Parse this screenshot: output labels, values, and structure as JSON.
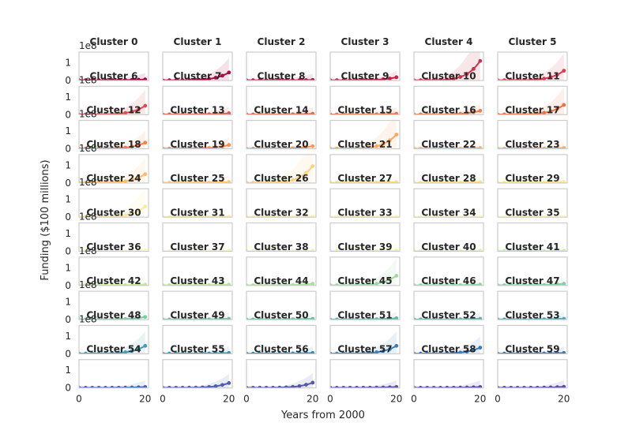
{
  "chart_data": {
    "type": "line",
    "layout": "small-multiples grid, 6 columns x 10 rows",
    "xlabel": "Years from 2000",
    "ylabel": "Funding ($100 millions)",
    "y_offset_label": "1e8",
    "xlim": [
      0,
      21
    ],
    "ylim": [
      0,
      1.6
    ],
    "xticks": [
      0,
      20
    ],
    "yticks": [
      0,
      1
    ],
    "grid": false,
    "colormap": "Spectral",
    "x": [
      0,
      1,
      2,
      3,
      4,
      5,
      6,
      7,
      8,
      9,
      10,
      11,
      12,
      13,
      14,
      15,
      16,
      17,
      18,
      19,
      20
    ],
    "clusters": [
      {
        "name": "Cluster 0",
        "color": "#9e0142",
        "end_value": 0.06
      },
      {
        "name": "Cluster 1",
        "color": "#a90d45",
        "end_value": 0.45
      },
      {
        "name": "Cluster 2",
        "color": "#b41a47",
        "end_value": 0.03
      },
      {
        "name": "Cluster 3",
        "color": "#bf2649",
        "end_value": 0.18
      },
      {
        "name": "Cluster 4",
        "color": "#ca334b",
        "end_value": 1.1
      },
      {
        "name": "Cluster 5",
        "color": "#d53e4f",
        "end_value": 0.55
      },
      {
        "name": "Cluster 6",
        "color": "#dc4a4c",
        "end_value": 0.5
      },
      {
        "name": "Cluster 7",
        "color": "#e2564b",
        "end_value": 0.08
      },
      {
        "name": "Cluster 8",
        "color": "#e8624a",
        "end_value": 0.05
      },
      {
        "name": "Cluster 9",
        "color": "#ee6e49",
        "end_value": 0.05
      },
      {
        "name": "Cluster 10",
        "color": "#f2794c",
        "end_value": 0.22
      },
      {
        "name": "Cluster 11",
        "color": "#f46d43",
        "end_value": 0.55
      },
      {
        "name": "Cluster 12",
        "color": "#f67e4b",
        "end_value": 0.35
      },
      {
        "name": "Cluster 13",
        "color": "#f88d52",
        "end_value": 0.22
      },
      {
        "name": "Cluster 14",
        "color": "#f99a58",
        "end_value": 0.15
      },
      {
        "name": "Cluster 15",
        "color": "#faa85e",
        "end_value": 0.8
      },
      {
        "name": "Cluster 16",
        "color": "#fbb566",
        "end_value": 0.05
      },
      {
        "name": "Cluster 17",
        "color": "#fdae61",
        "end_value": 0.05
      },
      {
        "name": "Cluster 18",
        "color": "#fdbb6d",
        "end_value": 0.5
      },
      {
        "name": "Cluster 19",
        "color": "#fdc776",
        "end_value": 0.05
      },
      {
        "name": "Cluster 20",
        "color": "#fdd17f",
        "end_value": 0.95
      },
      {
        "name": "Cluster 21",
        "color": "#fedb88",
        "end_value": 0.05
      },
      {
        "name": "Cluster 22",
        "color": "#fee08b",
        "end_value": 0.05
      },
      {
        "name": "Cluster 23",
        "color": "#fee592",
        "end_value": 0.05
      },
      {
        "name": "Cluster 24",
        "color": "#feea9a",
        "end_value": 0.6
      },
      {
        "name": "Cluster 25",
        "color": "#feefa3",
        "end_value": 0.03
      },
      {
        "name": "Cluster 26",
        "color": "#fef4ab",
        "end_value": 0.03
      },
      {
        "name": "Cluster 27",
        "color": "#fff9b3",
        "end_value": 0.03
      },
      {
        "name": "Cluster 28",
        "color": "#fffebe",
        "end_value": 0.03
      },
      {
        "name": "Cluster 29",
        "color": "#fbfdb9",
        "end_value": 0.03
      },
      {
        "name": "Cluster 30",
        "color": "#f6fbb2",
        "end_value": 0.03
      },
      {
        "name": "Cluster 31",
        "color": "#f1f9a9",
        "end_value": 0.03
      },
      {
        "name": "Cluster 32",
        "color": "#ebf7a3",
        "end_value": 0.03
      },
      {
        "name": "Cluster 33",
        "color": "#e6f598",
        "end_value": 0.03
      },
      {
        "name": "Cluster 34",
        "color": "#ddf29c",
        "end_value": 0.03
      },
      {
        "name": "Cluster 35",
        "color": "#d1ed9c",
        "end_value": 0.03
      },
      {
        "name": "Cluster 36",
        "color": "#c6e89e",
        "end_value": 0.05
      },
      {
        "name": "Cluster 37",
        "color": "#bae3a0",
        "end_value": 0.05
      },
      {
        "name": "Cluster 38",
        "color": "#abdda4",
        "end_value": 0.1
      },
      {
        "name": "Cluster 39",
        "color": "#a0d8a4",
        "end_value": 0.55
      },
      {
        "name": "Cluster 40",
        "color": "#94d3a4",
        "end_value": 0.05
      },
      {
        "name": "Cluster 41",
        "color": "#88cea5",
        "end_value": 0.1
      },
      {
        "name": "Cluster 42",
        "color": "#7ccaa5",
        "end_value": 0.15
      },
      {
        "name": "Cluster 43",
        "color": "#70c0a6",
        "end_value": 0.05
      },
      {
        "name": "Cluster 44",
        "color": "#66c2a5",
        "end_value": 0.05
      },
      {
        "name": "Cluster 45",
        "color": "#5db7a9",
        "end_value": 0.08
      },
      {
        "name": "Cluster 46",
        "color": "#54aead",
        "end_value": 0.05
      },
      {
        "name": "Cluster 47",
        "color": "#4ba4b1",
        "end_value": 0.05
      },
      {
        "name": "Cluster 48",
        "color": "#439bb5",
        "end_value": 0.45
      },
      {
        "name": "Cluster 49",
        "color": "#3a92b8",
        "end_value": 0.05
      },
      {
        "name": "Cluster 50",
        "color": "#3288bd",
        "end_value": 0.05
      },
      {
        "name": "Cluster 51",
        "color": "#3880ba",
        "end_value": 0.45
      },
      {
        "name": "Cluster 52",
        "color": "#3e78b6",
        "end_value": 0.35
      },
      {
        "name": "Cluster 53",
        "color": "#4470b2",
        "end_value": 0.05
      },
      {
        "name": "Cluster 54",
        "color": "#4a68ae",
        "end_value": 0.06
      },
      {
        "name": "Cluster 55",
        "color": "#5061aa",
        "end_value": 0.28
      },
      {
        "name": "Cluster 56",
        "color": "#5659a6",
        "end_value": 0.3
      },
      {
        "name": "Cluster 57",
        "color": "#5c52a2",
        "end_value": 0.06
      },
      {
        "name": "Cluster 58",
        "color": "#5e4fa2",
        "end_value": 0.06
      },
      {
        "name": "Cluster 59",
        "color": "#5e4fa2",
        "end_value": 0.07
      }
    ]
  }
}
